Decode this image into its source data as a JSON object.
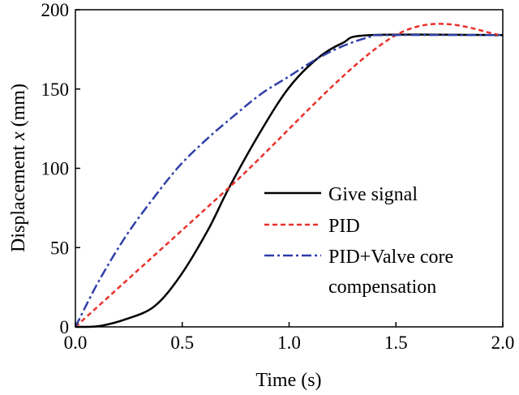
{
  "chart_data": {
    "type": "line",
    "title": "",
    "xlabel": "Time (s)",
    "ylabel_main": "Displacement ",
    "ylabel_var": "x",
    "ylabel_unit": " (mm)",
    "xlim": [
      0,
      2.0
    ],
    "ylim": [
      0,
      200
    ],
    "xticks": [
      "0.0",
      "0.5",
      "1.0",
      "1.5",
      "2.0"
    ],
    "xtick_values": [
      0,
      0.5,
      1.0,
      1.5,
      2.0
    ],
    "yticks": [
      "0",
      "50",
      "100",
      "150",
      "200"
    ],
    "ytick_values": [
      0,
      50,
      100,
      150,
      200
    ],
    "grid": false,
    "legend_placement": "bottom-right",
    "series": [
      {
        "name": "Give signal",
        "color": "#000000",
        "style": "solid",
        "x": [
          0,
          0.11,
          0.24,
          0.37,
          0.49,
          0.62,
          0.72,
          0.87,
          1.0,
          1.13,
          1.25,
          1.38,
          2.0
        ],
        "y": [
          0,
          0.5,
          5,
          13,
          32,
          61,
          88,
          124,
          151,
          169,
          179,
          184,
          184
        ]
      },
      {
        "name": "PID",
        "color": "#e8312a",
        "style": "dashed",
        "x": [
          0,
          0.72,
          1.5,
          2.0
        ],
        "y": [
          0,
          88,
          184,
          184
        ]
      },
      {
        "name": "PID+Valve core",
        "name_line2": "compensation",
        "color": "#2f3fa8",
        "style": "dashdot",
        "x": [
          0,
          0.11,
          0.24,
          0.37,
          0.49,
          0.62,
          0.75,
          0.87,
          1.0,
          1.13,
          1.25,
          1.38,
          1.45,
          2.0
        ],
        "y": [
          0,
          29,
          58,
          82,
          102,
          119,
          134,
          147,
          158,
          169,
          177,
          183,
          184,
          184
        ]
      }
    ]
  }
}
